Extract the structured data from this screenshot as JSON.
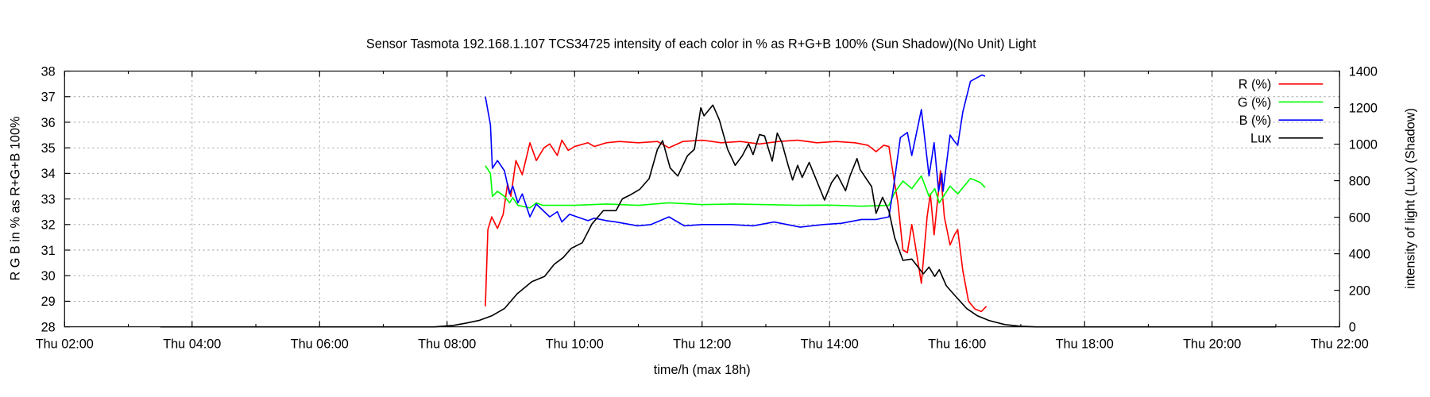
{
  "chart_data": {
    "type": "line",
    "title": "Sensor Tasmota 192.168.1.107 TCS34725 intensity of each color in % as R+G+B 100% (Sun Shadow)(No Unit) Light",
    "xlabel": "time/h (max 18h)",
    "ylabel": "R G B in % as R+G+B 100%",
    "y2label": "intensity of light (Lux) (Shadow)",
    "xlim_hours": [
      2,
      22
    ],
    "ylim": [
      28,
      38
    ],
    "y2lim": [
      0,
      1400
    ],
    "grid": true,
    "legend_position": "top-right",
    "x_ticks": [
      {
        "h": 2,
        "label": "Thu 02:00"
      },
      {
        "h": 4,
        "label": "Thu 04:00"
      },
      {
        "h": 6,
        "label": "Thu 06:00"
      },
      {
        "h": 8,
        "label": "Thu 08:00"
      },
      {
        "h": 10,
        "label": "Thu 10:00"
      },
      {
        "h": 12,
        "label": "Thu 12:00"
      },
      {
        "h": 14,
        "label": "Thu 14:00"
      },
      {
        "h": 16,
        "label": "Thu 16:00"
      },
      {
        "h": 18,
        "label": "Thu 18:00"
      },
      {
        "h": 20,
        "label": "Thu 20:00"
      },
      {
        "h": 22,
        "label": "Thu 22:00"
      }
    ],
    "y_ticks": [
      "28",
      "29",
      "30",
      "31",
      "32",
      "33",
      "34",
      "35",
      "36",
      "37",
      "38"
    ],
    "y2_ticks": [
      "0",
      "200",
      "400",
      "600",
      "800",
      "1000",
      "1200",
      "1400"
    ],
    "series": [
      {
        "name": "R (%)",
        "axis": "y",
        "color": "#ff0000",
        "points": [
          [
            8.6,
            28.8
          ],
          [
            8.64,
            31.8
          ],
          [
            8.7,
            32.3
          ],
          [
            8.79,
            31.85
          ],
          [
            8.88,
            32.4
          ],
          [
            8.95,
            33.6
          ],
          [
            9.0,
            33.1
          ],
          [
            9.08,
            34.5
          ],
          [
            9.18,
            33.95
          ],
          [
            9.3,
            35.2
          ],
          [
            9.4,
            34.5
          ],
          [
            9.52,
            35.0
          ],
          [
            9.61,
            35.15
          ],
          [
            9.73,
            34.7
          ],
          [
            9.8,
            35.3
          ],
          [
            9.9,
            34.9
          ],
          [
            10.0,
            35.05
          ],
          [
            10.21,
            35.2
          ],
          [
            10.31,
            35.05
          ],
          [
            10.5,
            35.2
          ],
          [
            10.7,
            35.25
          ],
          [
            11.0,
            35.2
          ],
          [
            11.3,
            35.25
          ],
          [
            11.48,
            35.0
          ],
          [
            11.7,
            35.25
          ],
          [
            12.0,
            35.3
          ],
          [
            12.3,
            35.2
          ],
          [
            12.6,
            35.25
          ],
          [
            12.9,
            35.15
          ],
          [
            13.2,
            35.25
          ],
          [
            13.5,
            35.3
          ],
          [
            13.8,
            35.2
          ],
          [
            14.1,
            35.25
          ],
          [
            14.4,
            35.2
          ],
          [
            14.6,
            35.1
          ],
          [
            14.73,
            34.85
          ],
          [
            14.85,
            35.1
          ],
          [
            14.93,
            35.05
          ],
          [
            15.02,
            33.6
          ],
          [
            15.07,
            32.9
          ],
          [
            15.15,
            31.0
          ],
          [
            15.22,
            30.9
          ],
          [
            15.29,
            32.0
          ],
          [
            15.35,
            31.1
          ],
          [
            15.44,
            29.7
          ],
          [
            15.53,
            32.3
          ],
          [
            15.58,
            33.2
          ],
          [
            15.64,
            31.6
          ],
          [
            15.74,
            34.1
          ],
          [
            15.8,
            32.3
          ],
          [
            15.89,
            31.2
          ],
          [
            15.96,
            31.6
          ],
          [
            16.01,
            31.8
          ],
          [
            16.09,
            30.2
          ],
          [
            16.18,
            29.0
          ],
          [
            16.28,
            28.7
          ],
          [
            16.38,
            28.6
          ],
          [
            16.46,
            28.8
          ]
        ]
      },
      {
        "name": "G (%)",
        "axis": "y",
        "color": "#00ff00",
        "points": [
          [
            8.6,
            34.3
          ],
          [
            8.68,
            34.0
          ],
          [
            8.71,
            33.1
          ],
          [
            8.79,
            33.3
          ],
          [
            8.9,
            33.1
          ],
          [
            8.98,
            32.85
          ],
          [
            9.03,
            33.05
          ],
          [
            9.11,
            32.75
          ],
          [
            9.3,
            32.65
          ],
          [
            9.4,
            32.85
          ],
          [
            9.5,
            32.75
          ],
          [
            10.0,
            32.75
          ],
          [
            10.5,
            32.8
          ],
          [
            11.0,
            32.75
          ],
          [
            11.48,
            32.85
          ],
          [
            12.0,
            32.78
          ],
          [
            12.5,
            32.8
          ],
          [
            13.0,
            32.78
          ],
          [
            13.5,
            32.75
          ],
          [
            14.0,
            32.76
          ],
          [
            14.5,
            32.72
          ],
          [
            14.93,
            32.75
          ],
          [
            15.02,
            33.25
          ],
          [
            15.15,
            33.7
          ],
          [
            15.29,
            33.4
          ],
          [
            15.44,
            33.9
          ],
          [
            15.56,
            33.1
          ],
          [
            15.65,
            33.4
          ],
          [
            15.72,
            32.85
          ],
          [
            15.89,
            33.5
          ],
          [
            16.01,
            33.2
          ],
          [
            16.21,
            33.8
          ],
          [
            16.36,
            33.65
          ],
          [
            16.44,
            33.45
          ]
        ]
      },
      {
        "name": "B (%)",
        "axis": "y",
        "color": "#0000ff",
        "points": [
          [
            8.6,
            37.0
          ],
          [
            8.68,
            35.9
          ],
          [
            8.71,
            34.2
          ],
          [
            8.79,
            34.5
          ],
          [
            8.9,
            34.1
          ],
          [
            8.98,
            33.2
          ],
          [
            9.03,
            33.5
          ],
          [
            9.11,
            32.85
          ],
          [
            9.18,
            33.2
          ],
          [
            9.3,
            32.3
          ],
          [
            9.4,
            32.8
          ],
          [
            9.61,
            32.3
          ],
          [
            9.73,
            32.5
          ],
          [
            9.8,
            32.1
          ],
          [
            9.92,
            32.4
          ],
          [
            10.21,
            32.15
          ],
          [
            10.31,
            32.25
          ],
          [
            10.5,
            32.15
          ],
          [
            10.65,
            32.1
          ],
          [
            10.99,
            31.95
          ],
          [
            11.2,
            32.0
          ],
          [
            11.48,
            32.3
          ],
          [
            11.72,
            31.95
          ],
          [
            12.0,
            32.0
          ],
          [
            12.45,
            32.0
          ],
          [
            12.8,
            31.95
          ],
          [
            13.13,
            32.1
          ],
          [
            13.54,
            31.9
          ],
          [
            13.9,
            32.0
          ],
          [
            14.19,
            32.05
          ],
          [
            14.5,
            32.2
          ],
          [
            14.73,
            32.2
          ],
          [
            14.93,
            32.3
          ],
          [
            15.0,
            33.4
          ],
          [
            15.11,
            35.4
          ],
          [
            15.22,
            35.6
          ],
          [
            15.29,
            34.7
          ],
          [
            15.44,
            36.5
          ],
          [
            15.56,
            33.9
          ],
          [
            15.64,
            35.2
          ],
          [
            15.71,
            33.3
          ],
          [
            15.76,
            34.0
          ],
          [
            15.78,
            33.3
          ],
          [
            15.89,
            35.5
          ],
          [
            15.96,
            35.25
          ],
          [
            16.01,
            35.1
          ],
          [
            16.09,
            36.4
          ],
          [
            16.21,
            37.6
          ],
          [
            16.39,
            37.85
          ],
          [
            16.44,
            37.8
          ]
        ]
      },
      {
        "name": "Lux",
        "axis": "y2",
        "color": "#000000",
        "points": [
          [
            3.5,
            0
          ],
          [
            7.8,
            0
          ],
          [
            8.1,
            8
          ],
          [
            8.3,
            20
          ],
          [
            8.5,
            35
          ],
          [
            8.7,
            60
          ],
          [
            8.9,
            100
          ],
          [
            9.1,
            181
          ],
          [
            9.33,
            247
          ],
          [
            9.53,
            276
          ],
          [
            9.68,
            342
          ],
          [
            9.82,
            379
          ],
          [
            9.95,
            430
          ],
          [
            10.12,
            460
          ],
          [
            10.27,
            562
          ],
          [
            10.45,
            636
          ],
          [
            10.65,
            636
          ],
          [
            10.75,
            701
          ],
          [
            10.88,
            723
          ],
          [
            11.02,
            752
          ],
          [
            11.17,
            811
          ],
          [
            11.3,
            972
          ],
          [
            11.38,
            1019
          ],
          [
            11.5,
            870
          ],
          [
            11.62,
            826
          ],
          [
            11.77,
            936
          ],
          [
            11.88,
            972
          ],
          [
            11.98,
            1199
          ],
          [
            12.03,
            1155
          ],
          [
            12.17,
            1214
          ],
          [
            12.27,
            1133
          ],
          [
            12.4,
            973
          ],
          [
            12.52,
            884
          ],
          [
            12.63,
            936
          ],
          [
            12.73,
            1002
          ],
          [
            12.8,
            943
          ],
          [
            12.9,
            1053
          ],
          [
            12.98,
            1045
          ],
          [
            13.1,
            907
          ],
          [
            13.18,
            1061
          ],
          [
            13.25,
            1010
          ],
          [
            13.35,
            884
          ],
          [
            13.42,
            804
          ],
          [
            13.5,
            884
          ],
          [
            13.57,
            818
          ],
          [
            13.68,
            900
          ],
          [
            13.75,
            841
          ],
          [
            13.92,
            694
          ],
          [
            14.03,
            789
          ],
          [
            14.12,
            833
          ],
          [
            14.25,
            745
          ],
          [
            14.32,
            826
          ],
          [
            14.43,
            921
          ],
          [
            14.48,
            860
          ],
          [
            14.66,
            767
          ],
          [
            14.73,
            621
          ],
          [
            14.83,
            709
          ],
          [
            14.93,
            635
          ],
          [
            15.02,
            489
          ],
          [
            15.15,
            364
          ],
          [
            15.29,
            371
          ],
          [
            15.47,
            290
          ],
          [
            15.56,
            327
          ],
          [
            15.65,
            276
          ],
          [
            15.72,
            313
          ],
          [
            15.83,
            225
          ],
          [
            15.96,
            174
          ],
          [
            16.15,
            100
          ],
          [
            16.32,
            60
          ],
          [
            16.5,
            35
          ],
          [
            16.75,
            12
          ],
          [
            17.0,
            3
          ],
          [
            17.25,
            0
          ],
          [
            21.0,
            0
          ]
        ]
      }
    ]
  }
}
